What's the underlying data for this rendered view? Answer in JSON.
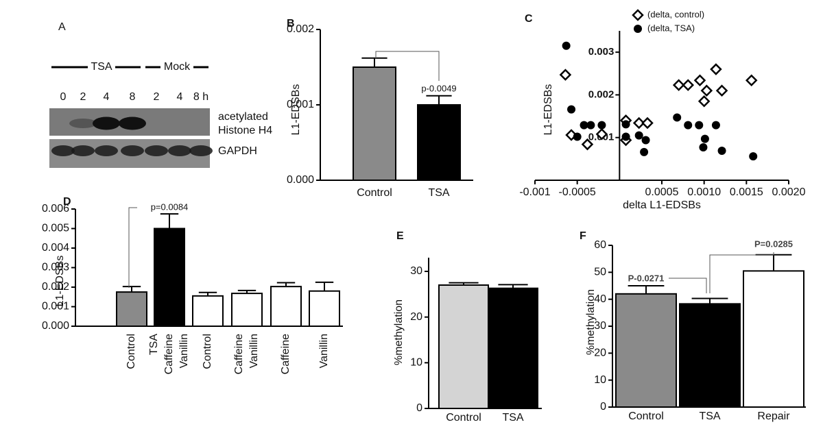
{
  "blot": {
    "label": "A",
    "groups": [
      "TSA",
      "Mock"
    ],
    "lanes": [
      "0",
      "2",
      "4",
      "8",
      "2",
      "4",
      "8 h"
    ],
    "rows": [
      [
        "acetylated",
        "Histone H4"
      ],
      [
        "GAPDH"
      ]
    ]
  },
  "chart_data": [
    {
      "type": "bar",
      "label": "B",
      "ylabel": "L1-EDSBs",
      "categories": [
        "Control",
        "TSA"
      ],
      "values": [
        0.0015,
        0.001
      ],
      "errors": [
        0.00012,
        0.00012
      ],
      "colors": [
        "#8a8a8a",
        "#000000"
      ],
      "ylim": [
        0,
        0.002
      ],
      "yticks": [
        {
          "value": 0,
          "label": "0.000"
        },
        {
          "value": 0.001,
          "label": "0.001"
        },
        {
          "value": 0.002,
          "label": "0.002"
        }
      ],
      "annotations": [
        "p-0.0049"
      ]
    },
    {
      "type": "scatter",
      "label": "C",
      "xlabel": "delta L1-EDSBs",
      "ylabel": "L1-EDSBs",
      "series": [
        {
          "name": "(delta, control)",
          "marker": "diamond",
          "color": "#000000",
          "x": [
            -0.00064,
            -0.00057,
            -0.00038,
            -0.00021,
            7.5e-05,
            7.5e-05,
            0.00023,
            0.00033,
            0.0007,
            0.00081,
            0.00095,
            0.00103,
            0.001,
            0.00114,
            0.00121,
            0.00156
          ],
          "values": [
            0.00247,
            0.00106,
            0.00084,
            0.00108,
            0.0014,
            0.00094,
            0.00134,
            0.00134,
            0.00223,
            0.00223,
            0.00234,
            0.0021,
            0.00185,
            0.0026,
            0.0021,
            0.00234
          ]
        },
        {
          "name": "(delta, TSA)",
          "marker": "circle",
          "color": "#000000",
          "x": [
            -0.00063,
            -0.00057,
            -0.0005,
            -0.00042,
            -0.00034,
            -0.00021,
            7.5e-05,
            7.5e-05,
            0.00023,
            0.00031,
            0.00029,
            0.00068,
            0.00081,
            0.00094,
            0.00101,
            0.00099,
            0.00114,
            0.00121,
            0.00158
          ],
          "values": [
            0.00315,
            0.00166,
            0.00102,
            0.00129,
            0.00129,
            0.00129,
            0.00131,
            0.00102,
            0.00105,
            0.00094,
            0.00066,
            0.00147,
            0.00129,
            0.00129,
            0.00097,
            0.00077,
            0.00129,
            0.00069,
            0.00056
          ]
        }
      ],
      "xlim": [
        -0.001,
        0.002
      ],
      "xticks": [
        -0.001,
        -0.0005,
        0.0005,
        {
          "value": 0.001,
          "label": "0.0010"
        },
        0.0015,
        {
          "value": 0.002,
          "label": "0.0020"
        }
      ],
      "ylim": [
        0,
        0.0035
      ],
      "yticks": [
        0.001,
        0.002,
        0.003
      ]
    },
    {
      "type": "bar",
      "label": "D",
      "ylabel": "L1-EDSBs",
      "categories": [
        [
          "Control"
        ],
        [
          "TSA",
          "Caffeine",
          "Vanillin"
        ],
        [
          "Control"
        ],
        [
          "Caffeine",
          "Vanillin"
        ],
        [
          "Caffeine"
        ],
        [
          "Vanillin"
        ]
      ],
      "values": [
        0.00175,
        0.005,
        0.00155,
        0.00168,
        0.00203,
        0.0018
      ],
      "errors": [
        0.00028,
        0.00075,
        0.00018,
        0.00015,
        0.0002,
        0.00045
      ],
      "colors": [
        "#8a8a8a",
        "#000000",
        "#ffffff",
        "#ffffff",
        "#ffffff",
        "#ffffff"
      ],
      "ylim": [
        0,
        0.006
      ],
      "yticks": [
        {
          "value": 0,
          "label": "0.000"
        },
        0.001,
        0.002,
        0.003,
        0.004,
        0.005,
        0.006
      ],
      "annotations": [
        "p=0.0084"
      ]
    },
    {
      "type": "bar",
      "label": "E",
      "ylabel": "%methylation",
      "categories": [
        "Control",
        "TSA"
      ],
      "values": [
        27,
        26.3
      ],
      "errors": [
        0.5,
        0.8
      ],
      "colors": [
        "#d4d4d4",
        "#000000"
      ],
      "ylim": [
        0,
        33
      ],
      "yticks": [
        0,
        10,
        20,
        30
      ]
    },
    {
      "type": "bar",
      "label": "F",
      "ylabel": "%methylation",
      "categories": [
        "Control",
        "TSA",
        "Repair"
      ],
      "values": [
        42,
        38.3,
        50.5
      ],
      "errors": [
        3,
        2,
        6
      ],
      "colors": [
        "#8a8a8a",
        "#000000",
        "#ffffff"
      ],
      "ylim": [
        0,
        60
      ],
      "yticks": [
        0,
        10,
        20,
        30,
        40,
        50,
        60
      ],
      "annotations": [
        "P-0.0271",
        "P=0.0285"
      ]
    }
  ]
}
